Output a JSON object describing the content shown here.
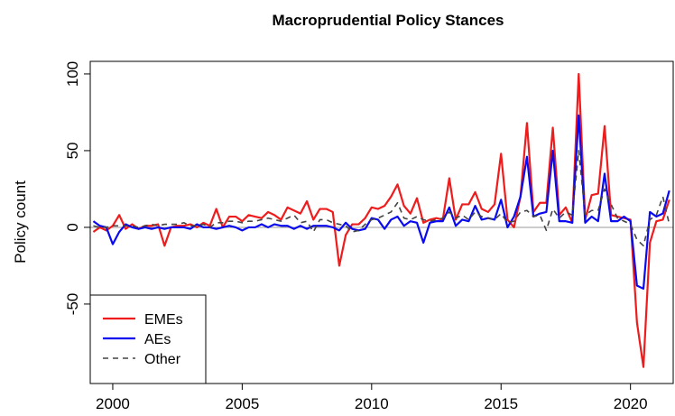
{
  "chart_data": {
    "type": "line",
    "title": "Macroprudential Policy Stances",
    "y_label": "Policy count",
    "xlim": [
      1999.13,
      2021.65
    ],
    "ylim": [
      -101.8,
      108.2
    ],
    "xticks": [
      2000,
      2005,
      2010,
      2015,
      2020
    ],
    "yticks": [
      -50,
      0,
      50,
      100
    ],
    "legend": "bottom-left",
    "x": [
      1999.25,
      1999.5,
      1999.75,
      2000,
      2000.25,
      2000.5,
      2000.75,
      2001,
      2001.25,
      2001.5,
      2001.75,
      2002,
      2002.25,
      2002.5,
      2002.75,
      2003,
      2003.25,
      2003.5,
      2003.75,
      2004,
      2004.25,
      2004.5,
      2004.75,
      2005,
      2005.25,
      2005.5,
      2005.75,
      2006,
      2006.25,
      2006.5,
      2006.75,
      2007,
      2007.25,
      2007.5,
      2007.75,
      2008,
      2008.25,
      2008.5,
      2008.75,
      2009,
      2009.25,
      2009.5,
      2009.75,
      2010,
      2010.25,
      2010.5,
      2010.75,
      2011,
      2011.25,
      2011.5,
      2011.75,
      2012,
      2012.25,
      2012.5,
      2012.75,
      2013,
      2013.25,
      2013.5,
      2013.75,
      2014,
      2014.25,
      2014.5,
      2014.75,
      2015,
      2015.25,
      2015.5,
      2015.75,
      2016,
      2016.25,
      2016.5,
      2016.75,
      2017,
      2017.25,
      2017.5,
      2017.75,
      2018,
      2018.25,
      2018.5,
      2018.75,
      2019,
      2019.25,
      2019.5,
      2019.75,
      2020,
      2020.25,
      2020.5,
      2020.75,
      2021,
      2021.25,
      2021.5
    ],
    "series": [
      {
        "name": "EMEs",
        "color": "#ee1c1c",
        "dash": false,
        "values": [
          -3,
          0,
          -2,
          1,
          8,
          -1,
          2,
          -1,
          1,
          1,
          2,
          -12,
          0,
          1,
          1,
          2,
          0,
          3,
          1,
          12,
          0,
          7,
          7,
          4,
          8,
          7,
          6,
          10,
          8,
          5,
          13,
          11,
          9,
          17,
          5,
          12,
          12,
          10,
          -25,
          -5,
          2,
          2,
          6,
          13,
          12,
          14,
          20,
          28,
          14,
          9,
          19,
          3,
          5,
          6,
          5,
          32,
          5,
          15,
          15,
          23,
          12,
          10,
          15,
          48,
          5,
          0,
          20,
          68,
          10,
          16,
          16,
          65,
          8,
          13,
          3,
          100,
          5,
          21,
          22,
          66,
          8,
          7,
          6,
          5,
          -62,
          -91,
          -10,
          4,
          5,
          18
        ]
      },
      {
        "name": "AEs",
        "color": "#0a0aee",
        "dash": false,
        "values": [
          4,
          1,
          0,
          -11,
          -3,
          2,
          0,
          -1,
          0,
          -1,
          0,
          -1,
          0,
          0,
          0,
          -1,
          2,
          0,
          0,
          -1,
          0,
          1,
          0,
          -2,
          0,
          0,
          2,
          0,
          2,
          1,
          1,
          -1,
          1,
          -1,
          1,
          1,
          1,
          0,
          -2,
          3,
          -1,
          -2,
          -1,
          6,
          5,
          -1,
          5,
          7,
          1,
          4,
          3,
          -10,
          3,
          4,
          4,
          13,
          1,
          5,
          4,
          14,
          5,
          6,
          5,
          18,
          0,
          7,
          20,
          46,
          7,
          9,
          10,
          50,
          4,
          4,
          3,
          73,
          3,
          7,
          4,
          35,
          4,
          4,
          7,
          4,
          -38,
          -40,
          10,
          7,
          9,
          24
        ]
      },
      {
        "name": "Other",
        "color": "#444444",
        "dash": true,
        "values": [
          1,
          0,
          0,
          1,
          1,
          1,
          1,
          0,
          1,
          2,
          1,
          2,
          2,
          2,
          3,
          1,
          1,
          2,
          0,
          3,
          3,
          4,
          4,
          3,
          4,
          4,
          5,
          6,
          5,
          4,
          6,
          8,
          3,
          4,
          -3,
          5,
          5,
          3,
          2,
          1,
          -3,
          -2,
          2,
          5,
          6,
          8,
          10,
          16,
          6,
          5,
          7,
          5,
          4,
          5,
          6,
          10,
          6,
          8,
          5,
          10,
          7,
          6,
          5,
          9,
          3,
          4,
          10,
          11,
          7,
          8,
          -2,
          12,
          6,
          10,
          8,
          50,
          8,
          11,
          11,
          25,
          15,
          6,
          4,
          2,
          -8,
          -12,
          5,
          8,
          20,
          2
        ]
      }
    ]
  }
}
